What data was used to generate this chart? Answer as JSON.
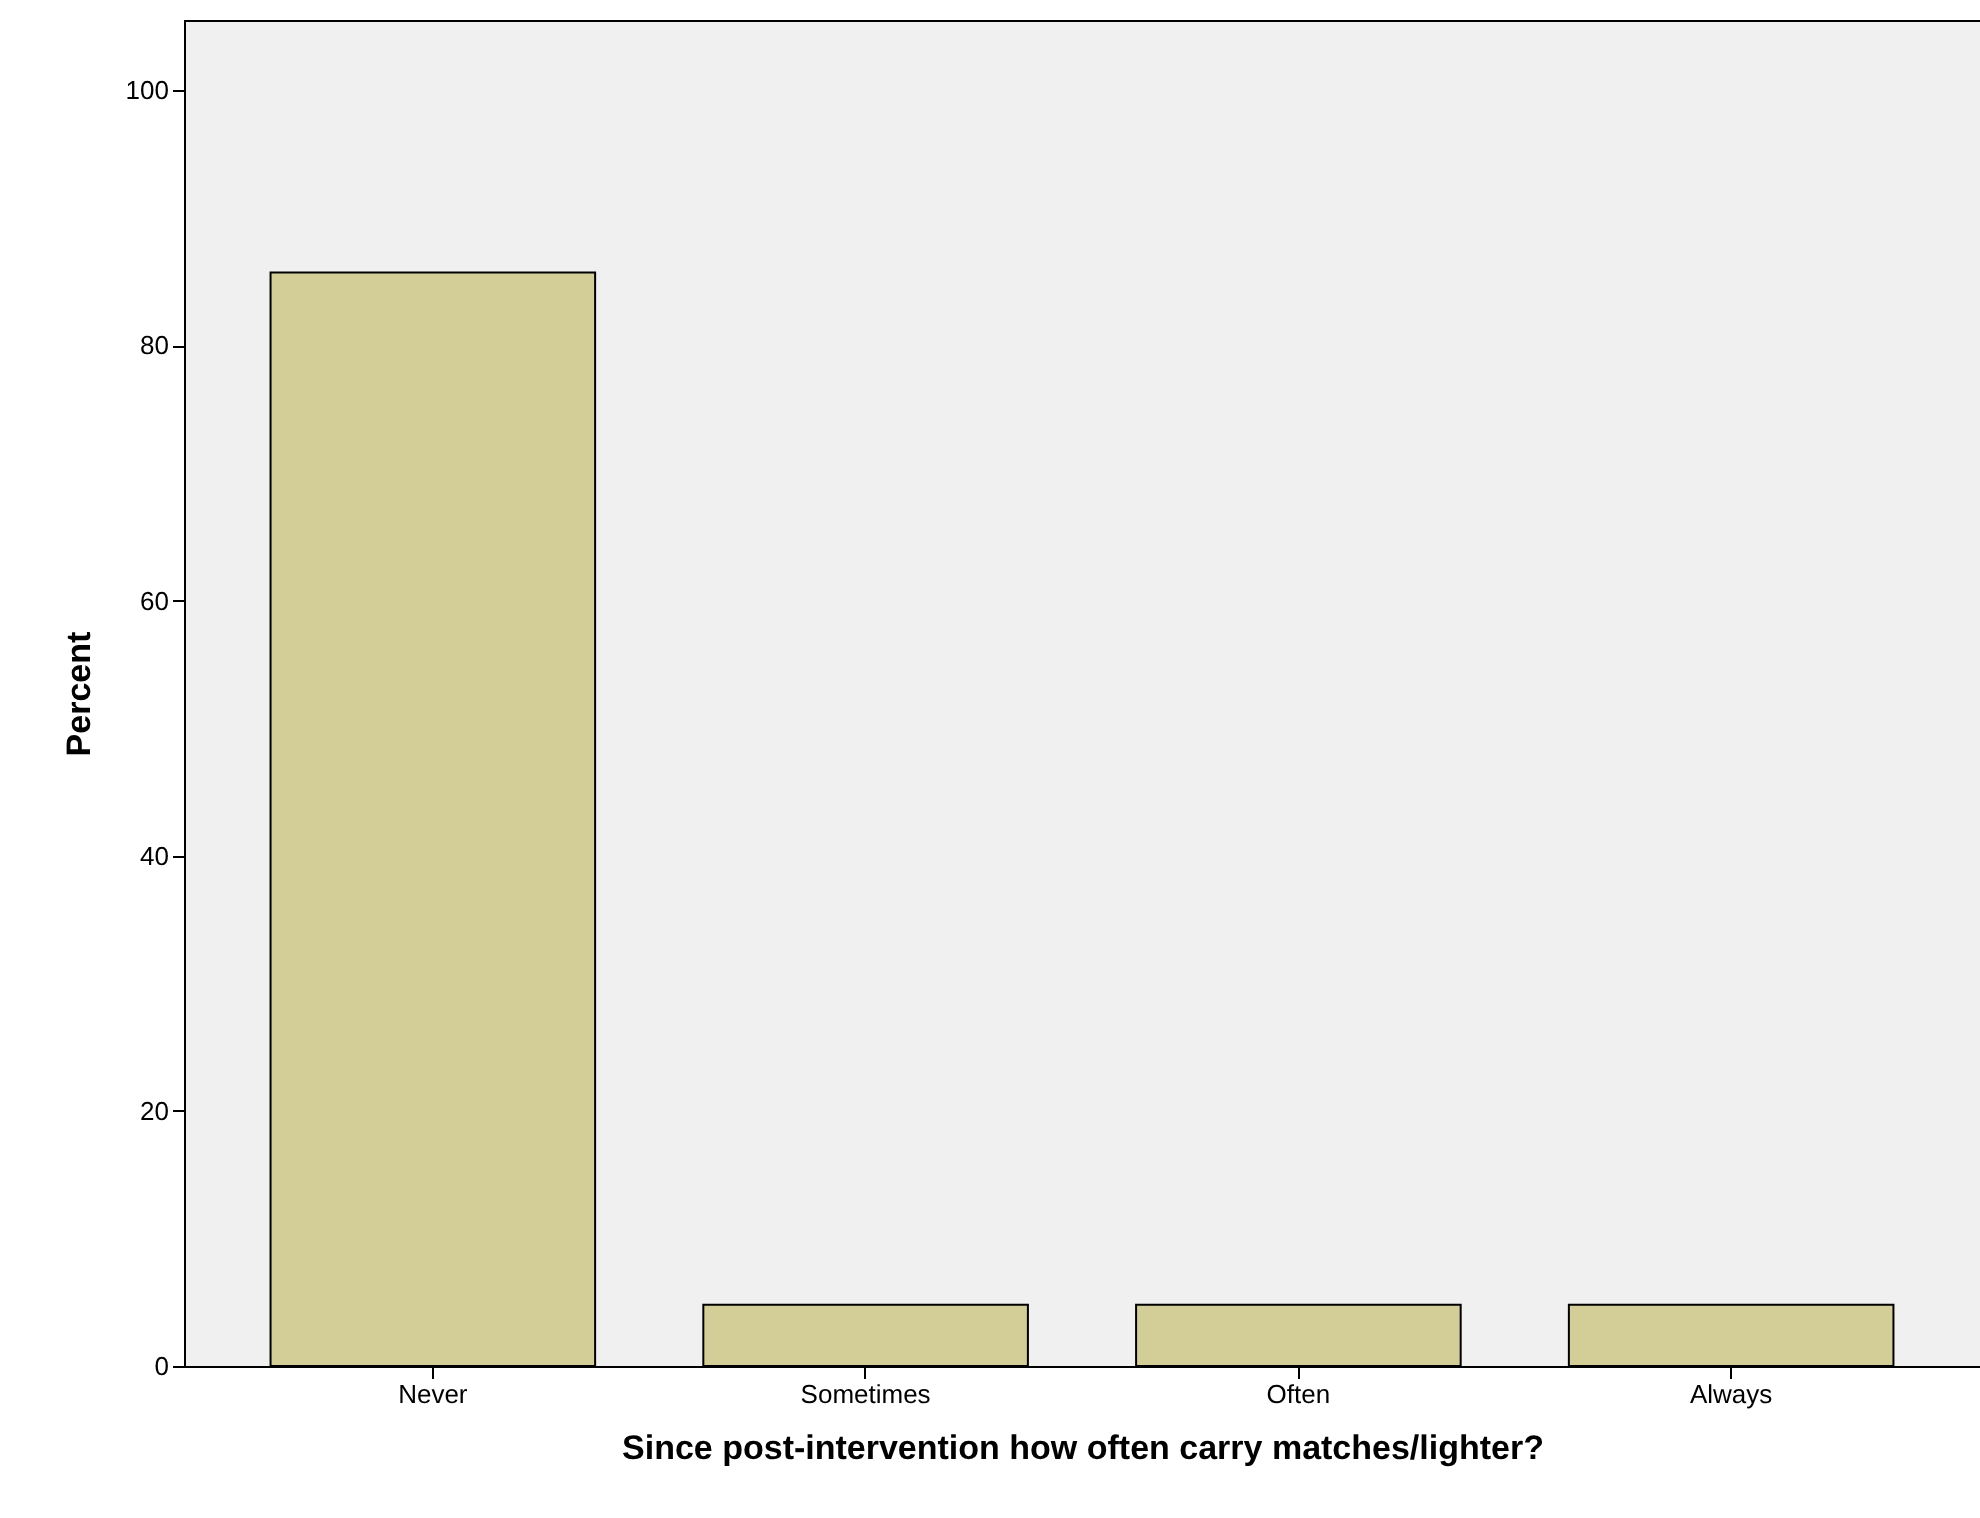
{
  "chart_data": {
    "type": "bar",
    "xlabel": "Since post-intervention how often carry matches/lighter?",
    "ylabel": "Percent",
    "categories": [
      "Never",
      "Sometimes",
      "Often",
      "Always"
    ],
    "values": [
      85.7,
      4.8,
      4.8,
      4.8
    ],
    "color": "#d3ce97",
    "ylim": [
      0,
      105.5
    ],
    "yticks": [
      0,
      20,
      40,
      60,
      80,
      100
    ],
    "grid": false
  }
}
